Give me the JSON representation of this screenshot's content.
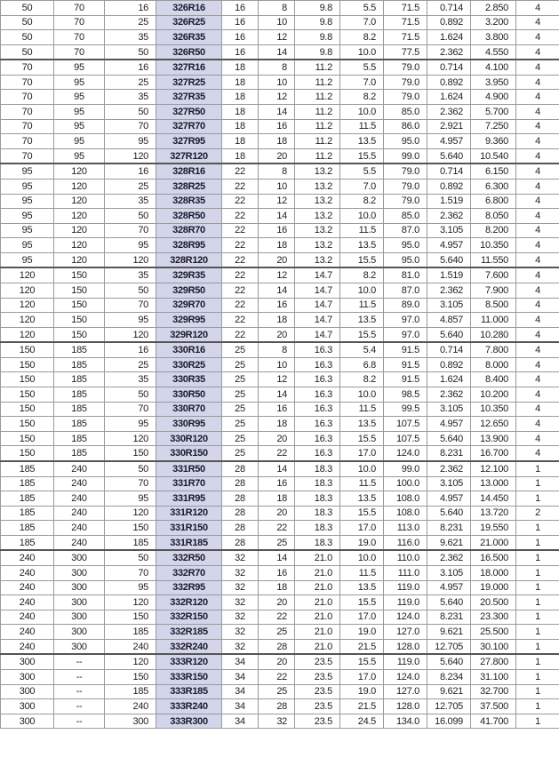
{
  "table": {
    "rows": [
      [
        "50",
        "70",
        "16",
        "326R16",
        "16",
        "8",
        "9.8",
        "5.5",
        "71.5",
        "0.714",
        "2.850",
        "4"
      ],
      [
        "50",
        "70",
        "25",
        "326R25",
        "16",
        "10",
        "9.8",
        "7.0",
        "71.5",
        "0.892",
        "3.200",
        "4"
      ],
      [
        "50",
        "70",
        "35",
        "326R35",
        "16",
        "12",
        "9.8",
        "8.2",
        "71.5",
        "1.624",
        "3.800",
        "4"
      ],
      [
        "50",
        "70",
        "50",
        "326R50",
        "16",
        "14",
        "9.8",
        "10.0",
        "77.5",
        "2.362",
        "4.550",
        "4"
      ],
      [
        "70",
        "95",
        "16",
        "327R16",
        "18",
        "8",
        "11.2",
        "5.5",
        "79.0",
        "0.714",
        "4.100",
        "4"
      ],
      [
        "70",
        "95",
        "25",
        "327R25",
        "18",
        "10",
        "11.2",
        "7.0",
        "79.0",
        "0.892",
        "3.950",
        "4"
      ],
      [
        "70",
        "95",
        "35",
        "327R35",
        "18",
        "12",
        "11.2",
        "8.2",
        "79.0",
        "1.624",
        "4.900",
        "4"
      ],
      [
        "70",
        "95",
        "50",
        "327R50",
        "18",
        "14",
        "11.2",
        "10.0",
        "85.0",
        "2.362",
        "5.700",
        "4"
      ],
      [
        "70",
        "95",
        "70",
        "327R70",
        "18",
        "16",
        "11.2",
        "11.5",
        "86.0",
        "2.921",
        "7.250",
        "4"
      ],
      [
        "70",
        "95",
        "95",
        "327R95",
        "18",
        "18",
        "11.2",
        "13.5",
        "95.0",
        "4.957",
        "9.360",
        "4"
      ],
      [
        "70",
        "95",
        "120",
        "327R120",
        "18",
        "20",
        "11.2",
        "15.5",
        "99.0",
        "5.640",
        "10.540",
        "4"
      ],
      [
        "95",
        "120",
        "16",
        "328R16",
        "22",
        "8",
        "13.2",
        "5.5",
        "79.0",
        "0.714",
        "6.150",
        "4"
      ],
      [
        "95",
        "120",
        "25",
        "328R25",
        "22",
        "10",
        "13.2",
        "7.0",
        "79.0",
        "0.892",
        "6.300",
        "4"
      ],
      [
        "95",
        "120",
        "35",
        "328R35",
        "22",
        "12",
        "13.2",
        "8.2",
        "79.0",
        "1.519",
        "6.800",
        "4"
      ],
      [
        "95",
        "120",
        "50",
        "328R50",
        "22",
        "14",
        "13.2",
        "10.0",
        "85.0",
        "2.362",
        "8.050",
        "4"
      ],
      [
        "95",
        "120",
        "70",
        "328R70",
        "22",
        "16",
        "13.2",
        "11.5",
        "87.0",
        "3.105",
        "8.200",
        "4"
      ],
      [
        "95",
        "120",
        "95",
        "328R95",
        "22",
        "18",
        "13.2",
        "13.5",
        "95.0",
        "4.957",
        "10.350",
        "4"
      ],
      [
        "95",
        "120",
        "120",
        "328R120",
        "22",
        "20",
        "13.2",
        "15.5",
        "95.0",
        "5.640",
        "11.550",
        "4"
      ],
      [
        "120",
        "150",
        "35",
        "329R35",
        "22",
        "12",
        "14.7",
        "8.2",
        "81.0",
        "1.519",
        "7.600",
        "4"
      ],
      [
        "120",
        "150",
        "50",
        "329R50",
        "22",
        "14",
        "14.7",
        "10.0",
        "87.0",
        "2.362",
        "7.900",
        "4"
      ],
      [
        "120",
        "150",
        "70",
        "329R70",
        "22",
        "16",
        "14.7",
        "11.5",
        "89.0",
        "3.105",
        "8.500",
        "4"
      ],
      [
        "120",
        "150",
        "95",
        "329R95",
        "22",
        "18",
        "14.7",
        "13.5",
        "97.0",
        "4.857",
        "11.000",
        "4"
      ],
      [
        "120",
        "150",
        "120",
        "329R120",
        "22",
        "20",
        "14.7",
        "15.5",
        "97.0",
        "5.640",
        "10.280",
        "4"
      ],
      [
        "150",
        "185",
        "16",
        "330R16",
        "25",
        "8",
        "16.3",
        "5.4",
        "91.5",
        "0.714",
        "7.800",
        "4"
      ],
      [
        "150",
        "185",
        "25",
        "330R25",
        "25",
        "10",
        "16.3",
        "6.8",
        "91.5",
        "0.892",
        "8.000",
        "4"
      ],
      [
        "150",
        "185",
        "35",
        "330R35",
        "25",
        "12",
        "16.3",
        "8.2",
        "91.5",
        "1.624",
        "8.400",
        "4"
      ],
      [
        "150",
        "185",
        "50",
        "330R50",
        "25",
        "14",
        "16.3",
        "10.0",
        "98.5",
        "2.362",
        "10.200",
        "4"
      ],
      [
        "150",
        "185",
        "70",
        "330R70",
        "25",
        "16",
        "16.3",
        "11.5",
        "99.5",
        "3.105",
        "10.350",
        "4"
      ],
      [
        "150",
        "185",
        "95",
        "330R95",
        "25",
        "18",
        "16.3",
        "13.5",
        "107.5",
        "4.957",
        "12.650",
        "4"
      ],
      [
        "150",
        "185",
        "120",
        "330R120",
        "25",
        "20",
        "16.3",
        "15.5",
        "107.5",
        "5.640",
        "13.900",
        "4"
      ],
      [
        "150",
        "185",
        "150",
        "330R150",
        "25",
        "22",
        "16.3",
        "17.0",
        "124.0",
        "8.231",
        "16.700",
        "4"
      ],
      [
        "185",
        "240",
        "50",
        "331R50",
        "28",
        "14",
        "18.3",
        "10.0",
        "99.0",
        "2.362",
        "12.100",
        "1"
      ],
      [
        "185",
        "240",
        "70",
        "331R70",
        "28",
        "16",
        "18.3",
        "11.5",
        "100.0",
        "3.105",
        "13.000",
        "1"
      ],
      [
        "185",
        "240",
        "95",
        "331R95",
        "28",
        "18",
        "18.3",
        "13.5",
        "108.0",
        "4.957",
        "14.450",
        "1"
      ],
      [
        "185",
        "240",
        "120",
        "331R120",
        "28",
        "20",
        "18.3",
        "15.5",
        "108.0",
        "5.640",
        "13.720",
        "2"
      ],
      [
        "185",
        "240",
        "150",
        "331R150",
        "28",
        "22",
        "18.3",
        "17.0",
        "113.0",
        "8.231",
        "19.550",
        "1"
      ],
      [
        "185",
        "240",
        "185",
        "331R185",
        "28",
        "25",
        "18.3",
        "19.0",
        "116.0",
        "9.621",
        "21.000",
        "1"
      ],
      [
        "240",
        "300",
        "50",
        "332R50",
        "32",
        "14",
        "21.0",
        "10.0",
        "110.0",
        "2.362",
        "16.500",
        "1"
      ],
      [
        "240",
        "300",
        "70",
        "332R70",
        "32",
        "16",
        "21.0",
        "11.5",
        "111.0",
        "3.105",
        "18.000",
        "1"
      ],
      [
        "240",
        "300",
        "95",
        "332R95",
        "32",
        "18",
        "21.0",
        "13.5",
        "119.0",
        "4.957",
        "19.000",
        "1"
      ],
      [
        "240",
        "300",
        "120",
        "332R120",
        "32",
        "20",
        "21.0",
        "15.5",
        "119.0",
        "5.640",
        "20.500",
        "1"
      ],
      [
        "240",
        "300",
        "150",
        "332R150",
        "32",
        "22",
        "21.0",
        "17.0",
        "124.0",
        "8.231",
        "23.300",
        "1"
      ],
      [
        "240",
        "300",
        "185",
        "332R185",
        "32",
        "25",
        "21.0",
        "19.0",
        "127.0",
        "9.621",
        "25.500",
        "1"
      ],
      [
        "240",
        "300",
        "240",
        "332R240",
        "32",
        "28",
        "21.0",
        "21.5",
        "128.0",
        "12.705",
        "30.100",
        "1"
      ],
      [
        "300",
        "--",
        "120",
        "333R120",
        "34",
        "20",
        "23.5",
        "15.5",
        "119.0",
        "5.640",
        "27.800",
        "1"
      ],
      [
        "300",
        "--",
        "150",
        "333R150",
        "34",
        "22",
        "23.5",
        "17.0",
        "124.0",
        "8.234",
        "31.100",
        "1"
      ],
      [
        "300",
        "--",
        "185",
        "333R185",
        "34",
        "25",
        "23.5",
        "19.0",
        "127.0",
        "9.621",
        "32.700",
        "1"
      ],
      [
        "300",
        "--",
        "240",
        "333R240",
        "34",
        "28",
        "23.5",
        "21.5",
        "128.0",
        "12.705",
        "37.500",
        "1"
      ],
      [
        "300",
        "--",
        "300",
        "333R300",
        "34",
        "32",
        "23.5",
        "24.5",
        "134.0",
        "16.099",
        "41.700",
        "1"
      ]
    ],
    "group_starts": [
      4,
      11,
      18,
      23,
      31,
      37,
      44
    ],
    "highlight_color": "#d3d5eb"
  }
}
